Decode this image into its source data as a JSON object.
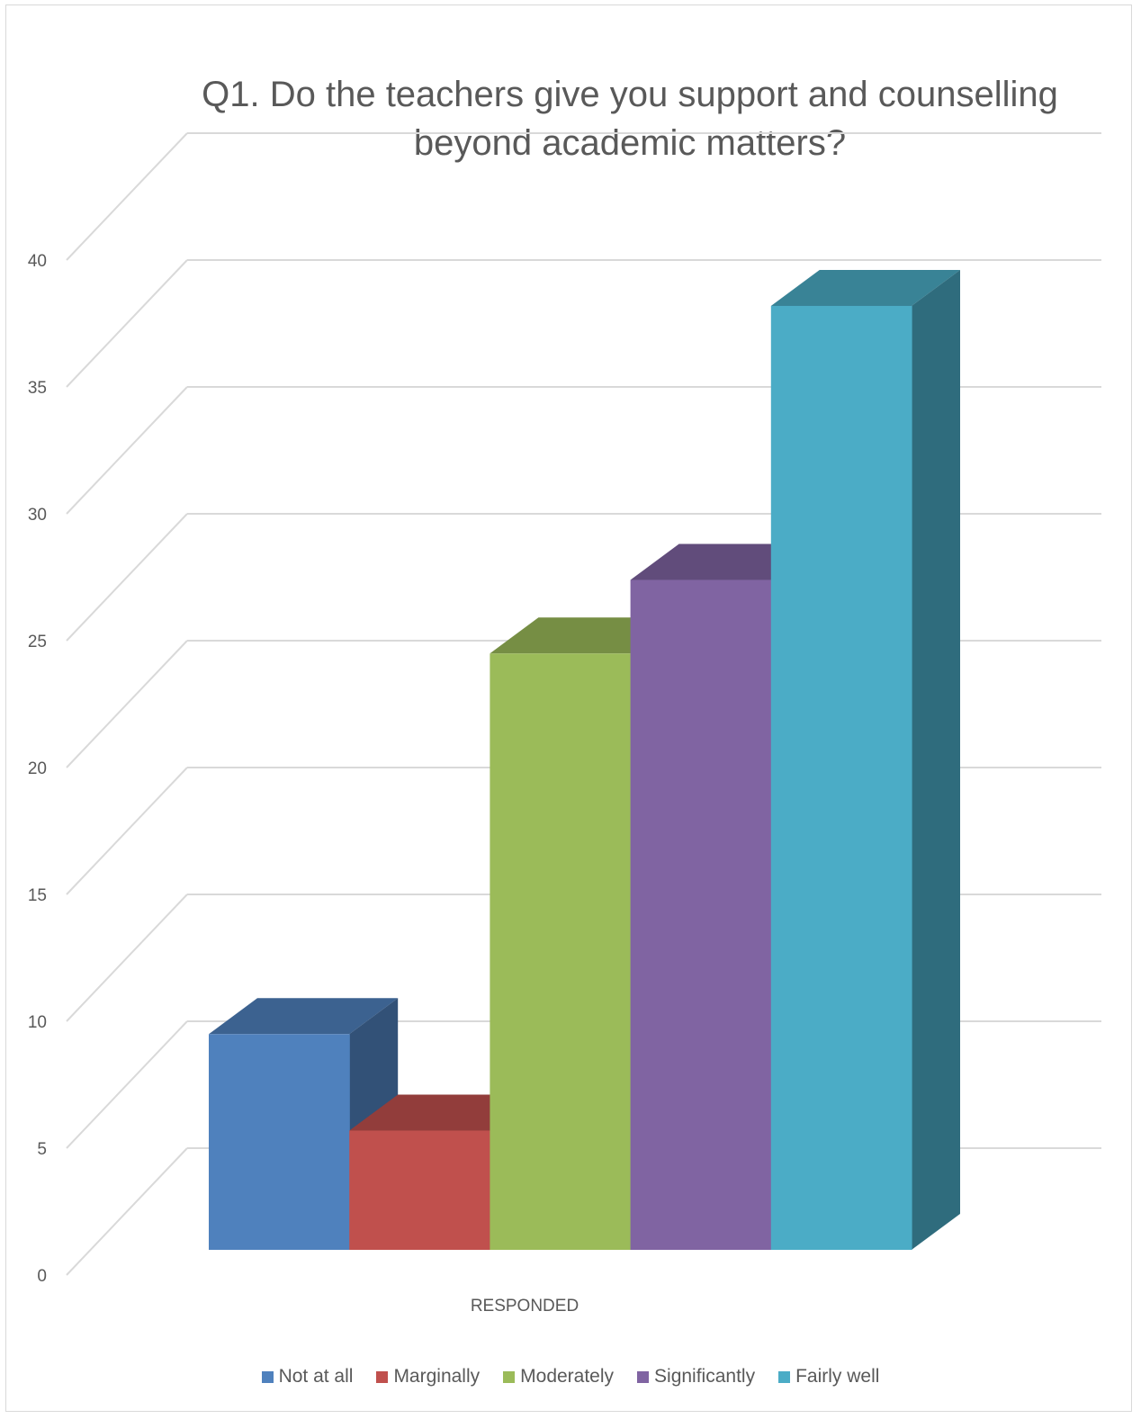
{
  "chart_data": {
    "type": "bar",
    "title": "Q1. Do the teachers give you  support and counselling beyond academic matters?",
    "xlabel": "RESPONDED",
    "ylabel": "",
    "categories": [
      "RESPONDED"
    ],
    "series": [
      {
        "name": "Not at all",
        "values": [
          8.5
        ],
        "color": "#4f81bd"
      },
      {
        "name": "Marginally",
        "values": [
          4.7
        ],
        "color": "#c0504d"
      },
      {
        "name": "Moderately",
        "values": [
          23.5
        ],
        "color": "#9bbb59"
      },
      {
        "name": "Significantly",
        "values": [
          26.4
        ],
        "color": "#8064a2"
      },
      {
        "name": "Fairly well",
        "values": [
          37.2
        ],
        "color": "#4bacc6"
      }
    ],
    "ylim": [
      0,
      40
    ],
    "yticks": [
      "0",
      "5",
      "10",
      "15",
      "20",
      "25",
      "30",
      "35",
      "40"
    ],
    "grid": true,
    "legend": "bottom",
    "style": "3d-column"
  }
}
